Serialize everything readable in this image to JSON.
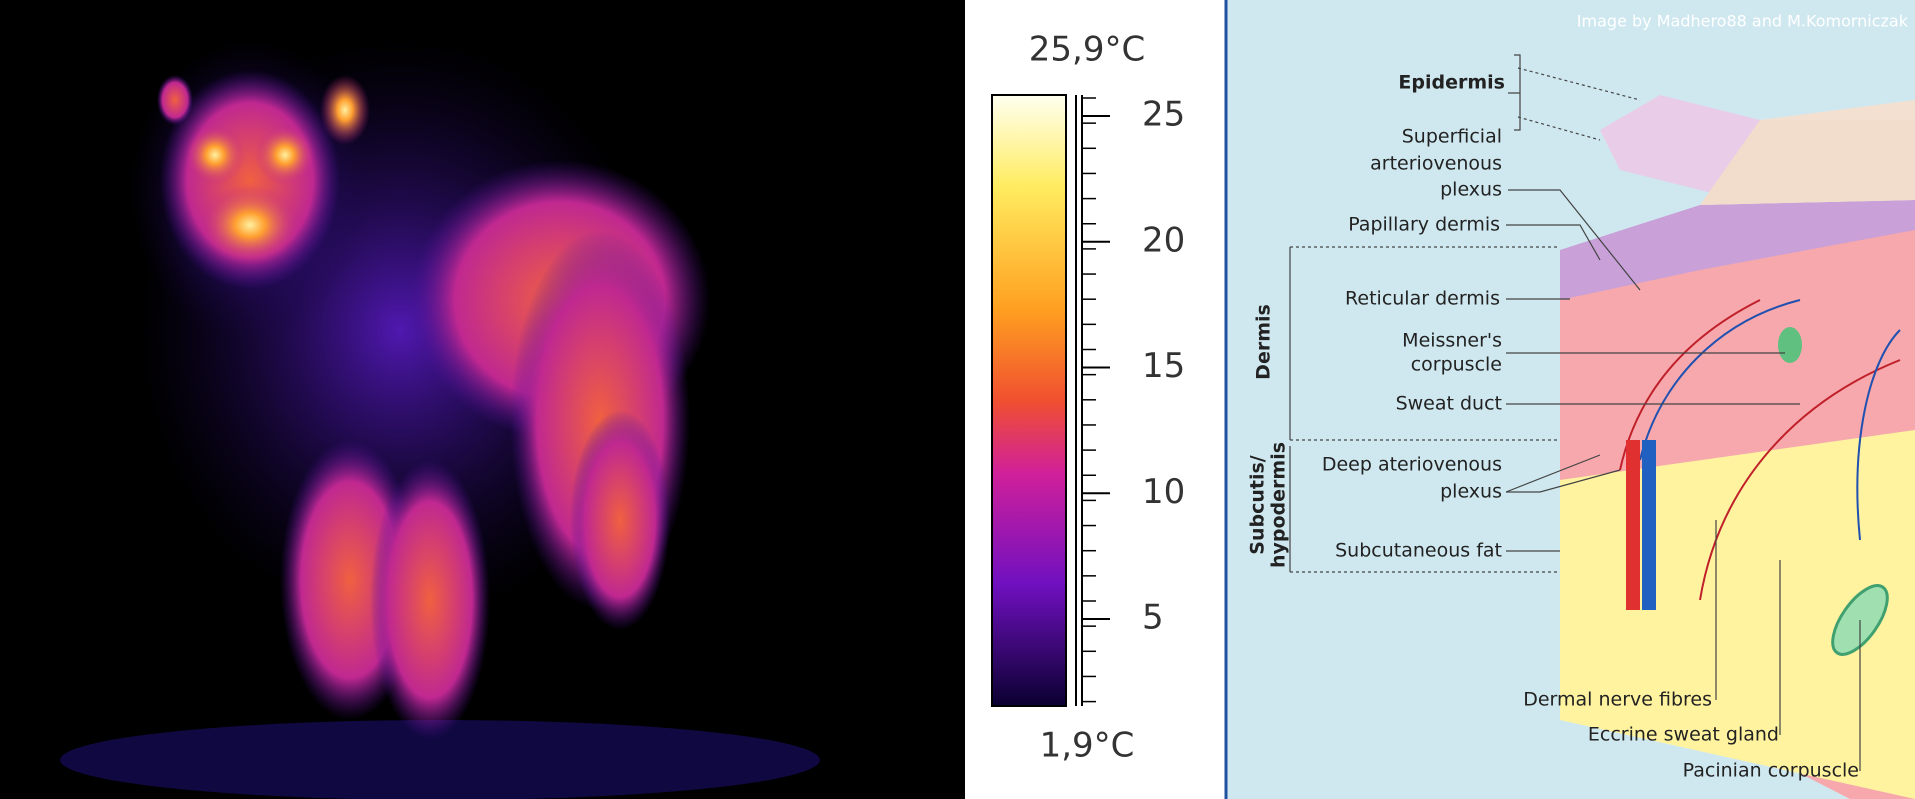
{
  "thermal_image": {
    "scale": {
      "max_label": "25,9°C",
      "min_label": "1,9°C",
      "ticks": [
        25,
        20,
        15,
        10,
        5
      ]
    }
  },
  "skin_diagram": {
    "credit": "Image by Madhero88 and M.Komorniczak",
    "layers": {
      "epidermis": "Epidermis",
      "dermis": "Dermis",
      "subcutis": [
        "Subcutis/",
        "hypodermis"
      ]
    },
    "labels": {
      "superficial_plexus": [
        "Superficial",
        "arteriovenous",
        "plexus"
      ],
      "papillary_dermis": "Papillary dermis",
      "reticular_dermis": "Reticular dermis",
      "meissner": [
        "Meissner's",
        "corpuscle"
      ],
      "sweat_duct": "Sweat duct",
      "deep_plexus": [
        "Deep ateriovenous",
        "plexus"
      ],
      "subcutaneous_fat": "Subcutaneous fat",
      "nerve_fibres": "Dermal nerve fibres",
      "sweat_gland": "Eccrine sweat gland",
      "pacinian": "Pacinian corpuscle"
    }
  }
}
